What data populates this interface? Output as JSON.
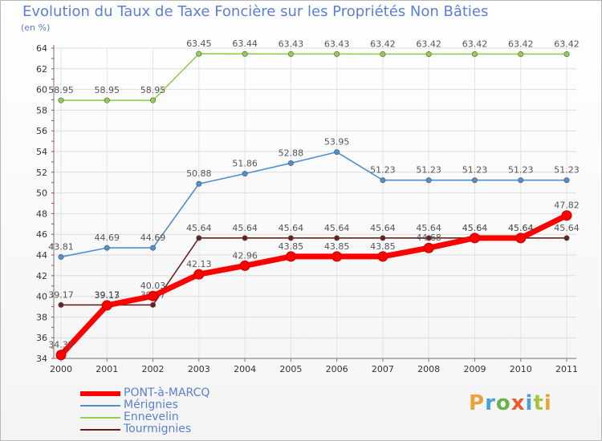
{
  "title": "Evolution du Taux de Taxe Foncière sur les Propriétés Non Bâties",
  "unit_label": "(en %)",
  "logo": {
    "letters": [
      "P",
      "r",
      "o",
      "x",
      "i",
      "t",
      "i"
    ],
    "colors": [
      "#e8a33c",
      "#4a9fd8",
      "#6bb04a",
      "#e85c2c",
      "#4a9fd8",
      "#a8c43c",
      "#e8a33c"
    ]
  },
  "chart_data": {
    "type": "line",
    "title": "Evolution du Taux de Taxe Foncière sur les Propriétés Non Bâties",
    "ylabel": "(en %)",
    "ylim": [
      34,
      64
    ],
    "yticks": [
      34,
      36,
      38,
      40,
      42,
      44,
      46,
      48,
      50,
      52,
      54,
      56,
      58,
      60,
      62,
      64
    ],
    "x": [
      "2000",
      "2001",
      "2002",
      "2003",
      "2004",
      "2005",
      "2006",
      "2007",
      "2008",
      "2009",
      "2010",
      "2011"
    ],
    "grid": true,
    "legend_position": "bottom-left",
    "series": [
      {
        "name": "Ennevelin",
        "color": "#8fd14f",
        "values": [
          58.95,
          58.95,
          58.95,
          63.45,
          63.44,
          63.43,
          63.43,
          63.42,
          63.42,
          63.42,
          63.42,
          63.42
        ],
        "labels": [
          "58.95",
          "58.95",
          "58.95",
          "63.45",
          "63.44",
          "63.43",
          "63.43",
          "63.42",
          "63.42",
          "63.42",
          "63.42",
          "63.42"
        ]
      },
      {
        "name": "Mérignies",
        "color": "#4f8fce",
        "values": [
          43.81,
          44.69,
          44.69,
          50.88,
          51.86,
          52.88,
          53.95,
          51.23,
          51.23,
          51.23,
          51.23,
          51.23
        ],
        "labels": [
          "43.81",
          "44.69",
          "44.69",
          "50.88",
          "51.86",
          "52.88",
          "53.95",
          "51.23",
          "51.23",
          "51.23",
          "51.23",
          "51.23"
        ]
      },
      {
        "name": "Tourmignies",
        "color": "#6b2020",
        "values": [
          39.17,
          39.17,
          39.17,
          45.64,
          45.64,
          45.64,
          45.64,
          45.64,
          45.64,
          45.64,
          45.64,
          45.64
        ],
        "labels": [
          "39.17",
          "39.17",
          "39.17",
          "45.64",
          "45.64",
          "45.64",
          "45.64",
          "45.64",
          "45.64",
          "45.64",
          "45.64",
          "45.64"
        ]
      },
      {
        "name": "PONT-à-MARCQ",
        "color": "#ff0000",
        "values": [
          34.33,
          39.13,
          40.03,
          42.13,
          42.96,
          43.85,
          43.85,
          43.85,
          44.68,
          45.64,
          45.64,
          47.82
        ],
        "labels": [
          "34.33",
          "39.13",
          "40.03",
          "42.13",
          "42.96",
          "43.85",
          "43.85",
          "43.85",
          "44.68",
          "45.64",
          "45.64",
          "47.82"
        ]
      }
    ],
    "legend_order": [
      "PONT-à-MARCQ",
      "Mérignies",
      "Ennevelin",
      "Tourmignies"
    ]
  }
}
